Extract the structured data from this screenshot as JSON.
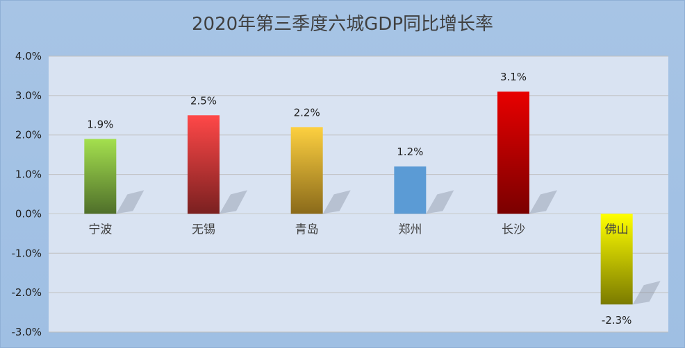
{
  "chart_data": {
    "type": "bar",
    "title": "2020年第三季度六城GDP同比增长率",
    "categories": [
      "宁波",
      "无锡",
      "青岛",
      "郑州",
      "长沙",
      "佛山"
    ],
    "values": [
      1.9,
      2.5,
      2.2,
      1.2,
      3.1,
      -2.3
    ],
    "data_labels": [
      "1.9%",
      "2.5%",
      "2.2%",
      "1.2%",
      "3.1%",
      "-2.3%"
    ],
    "ylim": [
      -3.0,
      4.0
    ],
    "yticks": [
      4.0,
      3.0,
      2.0,
      1.0,
      0.0,
      -1.0,
      -2.0,
      -3.0
    ],
    "ytick_labels": [
      "4.0%",
      "3.0%",
      "2.0%",
      "1.0%",
      "0.0%",
      "-1.0%",
      "-2.0%",
      "-3.0%"
    ],
    "grid": true,
    "legend": "none",
    "bar_colors": [
      [
        "#a4e04e",
        "#4f6f2a"
      ],
      [
        "#ff4848",
        "#7a2020"
      ],
      [
        "#fdd040",
        "#8a6a1a"
      ],
      [
        "#5b9bd5",
        "#5b9bd5"
      ],
      [
        "#e80000",
        "#7a0000"
      ],
      [
        "#ffff00",
        "#7a7a00"
      ]
    ],
    "plot_background": "#d9e3f2",
    "chart_background": "#a9c6e6"
  }
}
